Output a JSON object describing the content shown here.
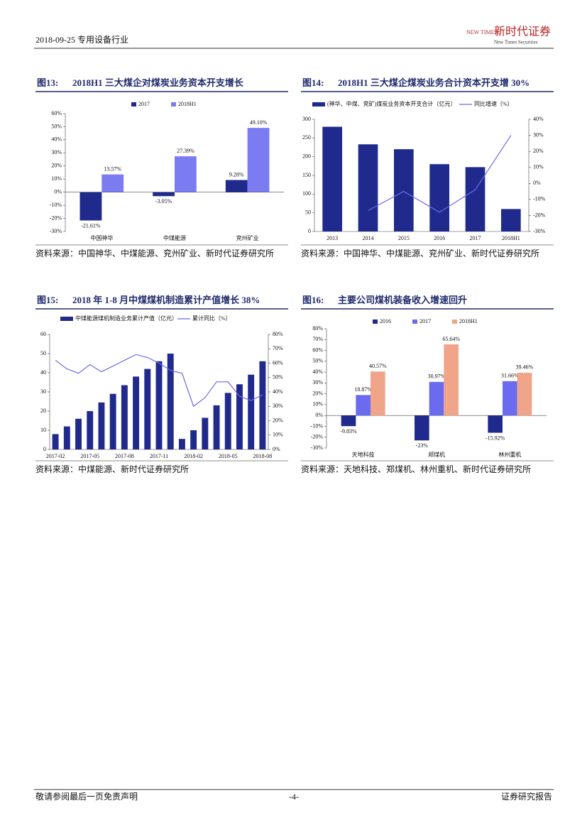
{
  "header": {
    "date_sector": "2018-09-25 专用设备行业",
    "logo_cn": "新时代证券",
    "logo_en": "New Times Securities",
    "logo_mark": "NEW TIMES"
  },
  "footer": {
    "disclaimer": "敬请参阅最后一页免责声明",
    "page": "-4-",
    "report_type": "证券研究报告"
  },
  "chart_data": [
    {
      "type": "bar",
      "figure": "图13:",
      "title": "2018H1 三大煤企对煤炭业务资本开支增长",
      "categories": [
        "中国神华",
        "中煤能源",
        "兖州矿业"
      ],
      "series": [
        {
          "name": "2017",
          "color": "#1f2a8c",
          "values": [
            -21.61,
            -3.05,
            9.28
          ],
          "value_labels": [
            "-21.61%",
            "-3.05%",
            "9.28%"
          ]
        },
        {
          "name": "2018H1",
          "color": "#7b7bf2",
          "values": [
            13.57,
            27.39,
            49.1
          ],
          "value_labels": [
            "13.57%",
            "27.39%",
            "49.10%"
          ]
        }
      ],
      "ylim": [
        -30,
        60
      ],
      "yticks": [
        {
          "value": -30,
          "label": "-30%"
        },
        {
          "value": -20,
          "label": "-20%"
        },
        {
          "value": -10,
          "label": "-10%"
        },
        {
          "value": 0,
          "label": "0%"
        },
        {
          "value": 10,
          "label": "10%"
        },
        {
          "value": 20,
          "label": "20%"
        },
        {
          "value": 30,
          "label": "30%"
        },
        {
          "value": 40,
          "label": "40%"
        },
        {
          "value": 50,
          "label": "50%"
        },
        {
          "value": 60,
          "label": "60%"
        }
      ],
      "source": "资料来源：中国神华、中煤能源、兖州矿业、新时代证券研究所"
    },
    {
      "type": "combo",
      "figure": "图14:",
      "title": "2018H1 三大煤企煤炭业务合计资本开支增 30%",
      "categories": [
        "2013",
        "2014",
        "2015",
        "2016",
        "2017",
        "2018H1"
      ],
      "series": [
        {
          "name": "(神华、中煤、兖矿)煤炭业务资本开支合计（亿元）",
          "color": "#1f2a8c",
          "values": [
            280,
            233,
            220,
            180,
            172,
            60
          ]
        },
        {
          "name": "同比增速（%）",
          "color": "#6b6bea",
          "axis": "y2",
          "values": [
            null,
            -17,
            -5,
            -18,
            -4,
            30
          ]
        }
      ],
      "ylim": [
        0,
        300
      ],
      "yticks": [
        0,
        50,
        100,
        150,
        200,
        250,
        300
      ],
      "y2lim": [
        -30,
        40
      ],
      "y2ticks": [
        {
          "value": -30,
          "label": "-30%"
        },
        {
          "value": -20,
          "label": "-20%"
        },
        {
          "value": -10,
          "label": "-10%"
        },
        {
          "value": 0,
          "label": "0%"
        },
        {
          "value": 10,
          "label": "10%"
        },
        {
          "value": 20,
          "label": "20%"
        },
        {
          "value": 30,
          "label": "30%"
        },
        {
          "value": 40,
          "label": "40%"
        }
      ],
      "source": "资料来源：中国神华、中煤能源、兖州矿业、新时代证券研究所"
    },
    {
      "type": "combo",
      "figure": "图15:",
      "title": "2018 年 1-8 月中煤煤机制造累计产值增长 38%",
      "categories": [
        "2017-02",
        null,
        null,
        "2017-05",
        null,
        null,
        "2017-08",
        null,
        null,
        "2017-11",
        null,
        null,
        "2018-02",
        null,
        null,
        "2018-05",
        null,
        null,
        "2018-08"
      ],
      "series": [
        {
          "name": "中煤能源煤机制造业务累计产值（亿元）",
          "color": "#1f2a8c",
          "values": [
            8,
            12,
            16,
            20,
            24.5,
            29,
            33.5,
            38,
            42,
            46,
            50,
            5.5,
            10,
            16.5,
            23,
            29.5,
            34,
            39,
            46
          ]
        },
        {
          "name": "累计同比（%）",
          "color": "#6b6bea",
          "axis": "y2",
          "values": [
            62,
            56,
            53,
            59,
            54,
            58,
            62,
            66,
            64,
            60,
            55,
            53,
            30,
            36,
            47,
            47,
            37,
            34,
            38
          ]
        }
      ],
      "ylim": [
        0,
        60
      ],
      "yticks": [
        0,
        10,
        20,
        30,
        40,
        50,
        60
      ],
      "y2lim": [
        0,
        80
      ],
      "y2ticks": [
        {
          "value": 0,
          "label": "0%"
        },
        {
          "value": 10,
          "label": "10%"
        },
        {
          "value": 20,
          "label": "20%"
        },
        {
          "value": 30,
          "label": "30%"
        },
        {
          "value": 40,
          "label": "40%"
        },
        {
          "value": 50,
          "label": "50%"
        },
        {
          "value": 60,
          "label": "60%"
        },
        {
          "value": 70,
          "label": "70%"
        },
        {
          "value": 80,
          "label": "80%"
        }
      ],
      "source": "资料来源：中煤能源、新时代证券研究所"
    },
    {
      "type": "bar",
      "figure": "图16:",
      "title": "主要公司煤机装备收入增速回升",
      "categories": [
        "天地科技",
        "郑煤机",
        "林州重机"
      ],
      "series": [
        {
          "name": "2016",
          "color": "#1f2a8c",
          "values": [
            -9.83,
            -23,
            -15.92
          ],
          "value_labels": [
            "-9.83%",
            "-23%",
            "-15.92%"
          ]
        },
        {
          "name": "2017",
          "color": "#6b6bf0",
          "values": [
            18.87,
            30.97,
            31.66
          ],
          "value_labels": [
            "18.87%",
            "30.97%",
            "31.66%"
          ]
        },
        {
          "name": "2018H1",
          "color": "#f0a58a",
          "values": [
            40.57,
            65.64,
            39.46
          ],
          "value_labels": [
            "40.57%",
            "65.64%",
            "39.46%"
          ]
        }
      ],
      "ylim": [
        -30,
        80
      ],
      "yticks": [
        {
          "value": -30,
          "label": "-30%"
        },
        {
          "value": -20,
          "label": "-20%"
        },
        {
          "value": -10,
          "label": "-10%"
        },
        {
          "value": 0,
          "label": "0%"
        },
        {
          "value": 10,
          "label": "10%"
        },
        {
          "value": 20,
          "label": "20%"
        },
        {
          "value": 30,
          "label": "30%"
        },
        {
          "value": 40,
          "label": "40%"
        },
        {
          "value": 50,
          "label": "50%"
        },
        {
          "value": 60,
          "label": "60%"
        },
        {
          "value": 70,
          "label": "70%"
        },
        {
          "value": 80,
          "label": "80%"
        }
      ],
      "source": "资料来源：天地科技、郑煤机、林州重机、新时代证券研究所"
    }
  ]
}
